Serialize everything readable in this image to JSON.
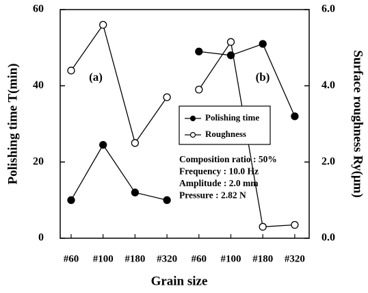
{
  "chart_data": {
    "type": "line",
    "xlabel": "Grain size",
    "ylabel": "Polishing time  T(min)",
    "y2label": "Surface roughness  Ry(μm)",
    "ylim": [
      0,
      60
    ],
    "yticks": [
      0,
      20,
      40,
      60
    ],
    "y2lim": [
      0,
      6
    ],
    "y2ticks": [
      {
        "value": 0,
        "label": "0.0"
      },
      {
        "value": 2,
        "label": "2.0"
      },
      {
        "value": 4,
        "label": "4.0"
      },
      {
        "value": 6,
        "label": "6.0"
      }
    ],
    "series": [
      {
        "name": "Polishing time",
        "color": "#000000",
        "marker": "filled"
      },
      {
        "name": "Roughness",
        "color": "#000000",
        "marker": "open",
        "axis": "y2"
      }
    ],
    "panels": [
      {
        "label": "(a)",
        "categories": [
          "#60",
          "#100",
          "#180",
          "#320"
        ],
        "series": [
          {
            "values": [
              10,
              24.5,
              12,
              10
            ]
          },
          {
            "values": [
              4.4,
              5.6,
              2.5,
              3.7
            ]
          }
        ]
      },
      {
        "label": "(b)",
        "categories": [
          "#60",
          "#100",
          "#180",
          "#320"
        ],
        "series": [
          {
            "values": [
              49,
              48,
              51,
              32
            ]
          },
          {
            "values": [
              3.9,
              5.15,
              0.3,
              0.35
            ]
          }
        ]
      }
    ],
    "annotations": [
      "Composition ratio : 50%",
      "Frequency : 10.0 Hz",
      "Amplitude : 2.0 mm",
      "Pressure : 2.82 N"
    ]
  }
}
